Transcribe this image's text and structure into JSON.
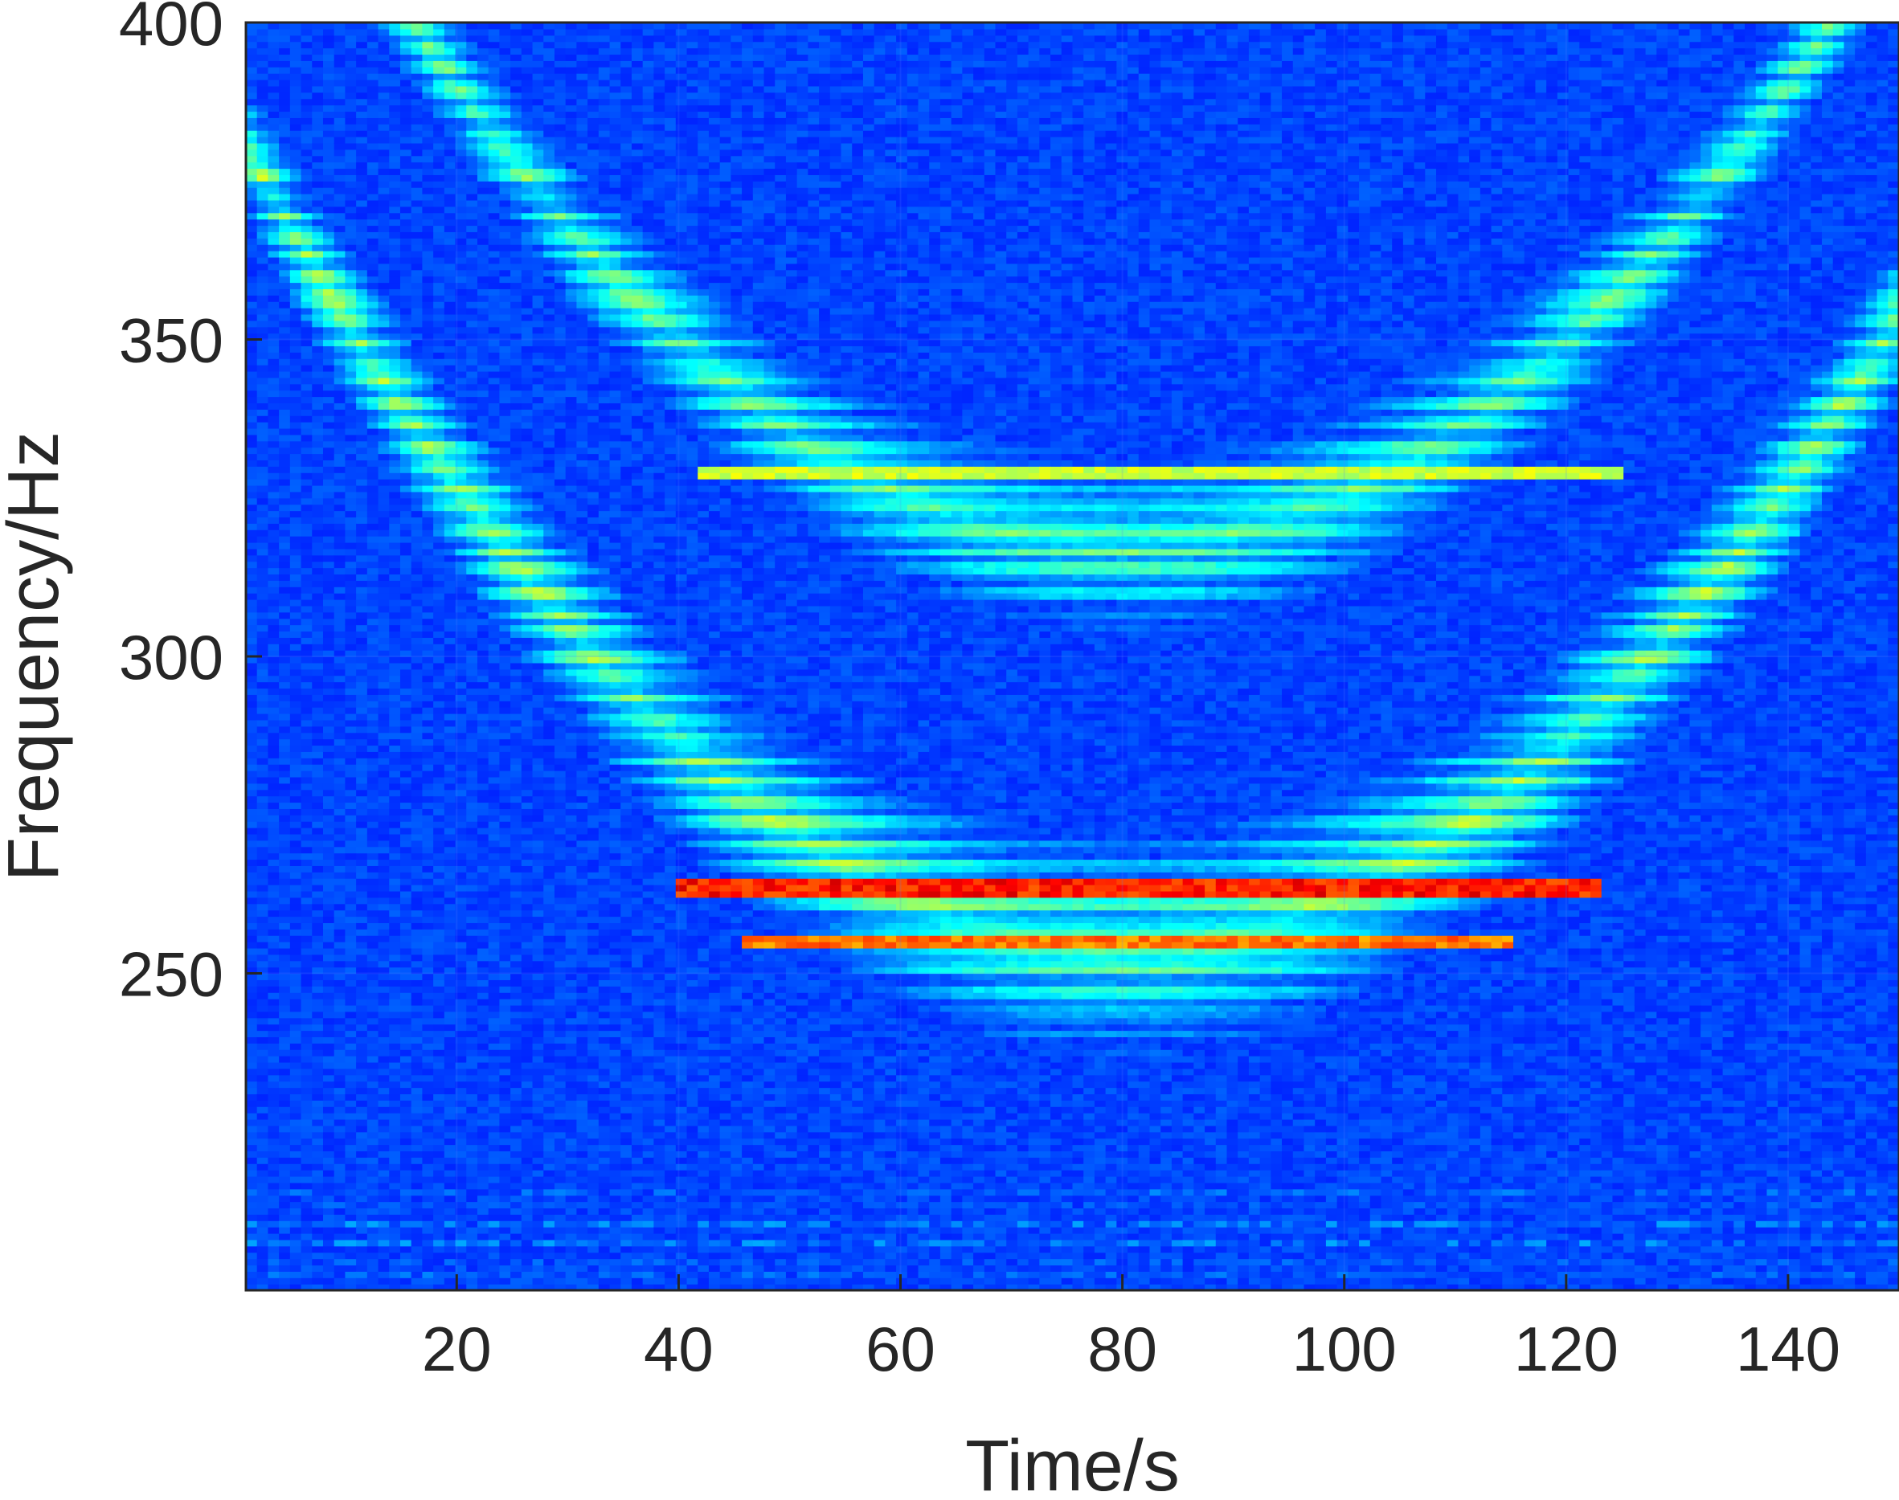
{
  "chart_data": {
    "type": "heatmap",
    "title": "",
    "xlabel": "Time/s",
    "ylabel": "Frequency/Hz",
    "xlim": [
      1,
      150
    ],
    "ylim": [
      200,
      400
    ],
    "xticks": [
      20,
      40,
      60,
      80,
      100,
      120,
      140
    ],
    "yticks": [
      250,
      300,
      350,
      400
    ],
    "grid": true,
    "colormap": "jet",
    "colormap_colors": [
      "#00008f",
      "#0000ff",
      "#00ffff",
      "#ffff00",
      "#ff0000",
      "#800000"
    ],
    "background_value": 0.16,
    "features": [
      {
        "name": "upper-curve-band",
        "shape": "u-curve",
        "t_center": 80,
        "curvature": 0.0212,
        "f_min": 303,
        "f_max": 332,
        "intensity": 0.5
      },
      {
        "name": "lower-curve-band",
        "shape": "u-curve",
        "t_center": 80,
        "curvature": 0.0212,
        "f_min": 237,
        "f_max": 272,
        "intensity": 0.55
      },
      {
        "name": "upper-strong-line",
        "shape": "line",
        "frequency": 329,
        "t_start": 42,
        "t_end": 125,
        "intensity": 0.62
      },
      {
        "name": "lower-strong-line",
        "shape": "line",
        "frequency": 263.5,
        "t_start": 40,
        "t_end": 123,
        "intensity": 0.92
      },
      {
        "name": "lower-strong-line-2",
        "shape": "line",
        "frequency": 255,
        "t_start": 46,
        "t_end": 115,
        "intensity": 0.82
      },
      {
        "name": "low-frequency-clutter",
        "shape": "band",
        "f_min": 200,
        "f_max": 218,
        "intensity": 0.3
      }
    ]
  }
}
